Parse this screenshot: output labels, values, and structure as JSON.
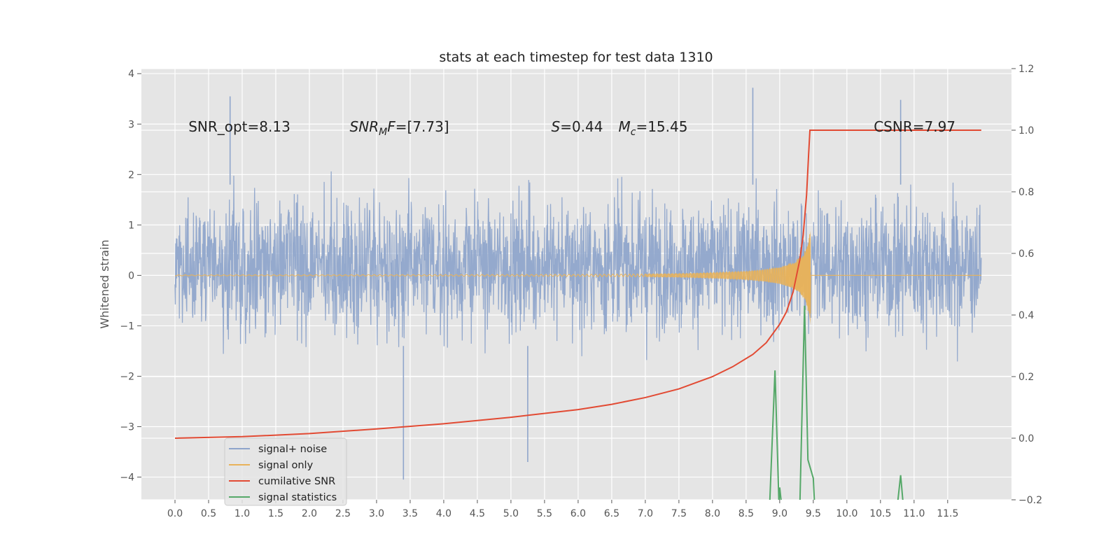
{
  "chart_data": {
    "type": "line",
    "title": "stats at each timestep for test data 1310",
    "ylabel": "Whitened strain",
    "xlim": [
      -0.5,
      12.45
    ],
    "ylim": [
      -4.45,
      4.1
    ],
    "y2lim": [
      -0.2,
      1.2
    ],
    "grid": true,
    "x_ticks": [
      "0.0",
      "0.5",
      "1.0",
      "1.5",
      "2.0",
      "2.5",
      "3.0",
      "3.5",
      "4.0",
      "4.5",
      "5.0",
      "5.5",
      "6.0",
      "6.5",
      "7.0",
      "7.5",
      "8.0",
      "8.5",
      "9.0",
      "9.5",
      "10.0",
      "10.5",
      "11.0",
      "11.5"
    ],
    "y_ticks": [
      "4",
      "3",
      "2",
      "1",
      "0",
      "−1",
      "−2",
      "−3",
      "−4"
    ],
    "y2_ticks": [
      "1.2",
      "1.0",
      "0.8",
      "0.6",
      "0.4",
      "0.2",
      "0.0",
      "−0.2"
    ],
    "annotations": [
      {
        "text": "SNR_opt=8.13",
        "x": 0.2,
        "y": 2.85
      },
      {
        "mathvar": "SNR",
        "sub": "M",
        "mathvar2": "F",
        "rest": "=[7.73]",
        "x": 2.6,
        "y": 2.85
      },
      {
        "mathvar": "S",
        "rest": "=0.44",
        "x": 5.6,
        "y": 2.85
      },
      {
        "mathvar": "M",
        "sub": "c",
        "rest": "=15.45",
        "x": 6.6,
        "y": 2.85
      },
      {
        "text": "CSNR=7.97",
        "x": 10.4,
        "y": 2.85
      }
    ],
    "legend": {
      "placement": "lower-left"
    },
    "series": [
      {
        "name": "signal+ noise",
        "color": "#8fa5cb",
        "axis": "left",
        "x_range": [
          0.0,
          12.0
        ],
        "envelope": {
          "typical": [
            -1.8,
            2.2
          ],
          "extreme": [
            -4.1,
            3.8
          ]
        },
        "notable_points": [
          {
            "x": 0.82,
            "y": 3.55
          },
          {
            "x": 3.4,
            "y": -4.05
          },
          {
            "x": 8.6,
            "y": 3.72
          },
          {
            "x": 10.8,
            "y": 3.48
          },
          {
            "x": 5.25,
            "y": -3.7
          }
        ]
      },
      {
        "name": "signal only",
        "color": "#e8b25a",
        "axis": "left",
        "x": [
          0,
          2,
          4,
          6,
          7,
          7.5,
          8,
          8.5,
          8.8,
          9,
          9.2,
          9.3,
          9.38,
          9.43,
          9.46
        ],
        "amplitude": [
          0.01,
          0.012,
          0.015,
          0.02,
          0.03,
          0.04,
          0.06,
          0.09,
          0.13,
          0.18,
          0.27,
          0.36,
          0.5,
          0.75,
          1.05
        ]
      },
      {
        "name": "cumilative SNR",
        "color": "#e24a33",
        "axis": "right",
        "x": [
          0,
          1,
          2,
          3,
          4,
          5,
          6,
          6.5,
          7,
          7.5,
          8,
          8.3,
          8.6,
          8.8,
          9.0,
          9.1,
          9.2,
          9.3,
          9.35,
          9.4,
          9.43,
          9.45,
          10,
          11,
          12
        ],
        "y": [
          0.0,
          0.005,
          0.015,
          0.03,
          0.047,
          0.068,
          0.093,
          0.11,
          0.132,
          0.16,
          0.2,
          0.232,
          0.272,
          0.31,
          0.37,
          0.41,
          0.475,
          0.58,
          0.66,
          0.79,
          0.92,
          1.0,
          1.0,
          1.0,
          1.0
        ]
      },
      {
        "name": "signal statistics",
        "color": "#55a868",
        "axis": "right",
        "x": [
          8.85,
          8.93,
          8.99,
          9.0,
          9.03,
          9.06,
          9.3,
          9.37,
          9.42,
          9.5,
          9.52,
          10.75,
          10.8,
          10.84
        ],
        "y": [
          -0.22,
          0.22,
          -0.22,
          -0.16,
          -0.22,
          -0.22,
          -0.22,
          0.43,
          -0.07,
          -0.13,
          -0.22,
          -0.22,
          -0.12,
          -0.22
        ]
      }
    ]
  }
}
